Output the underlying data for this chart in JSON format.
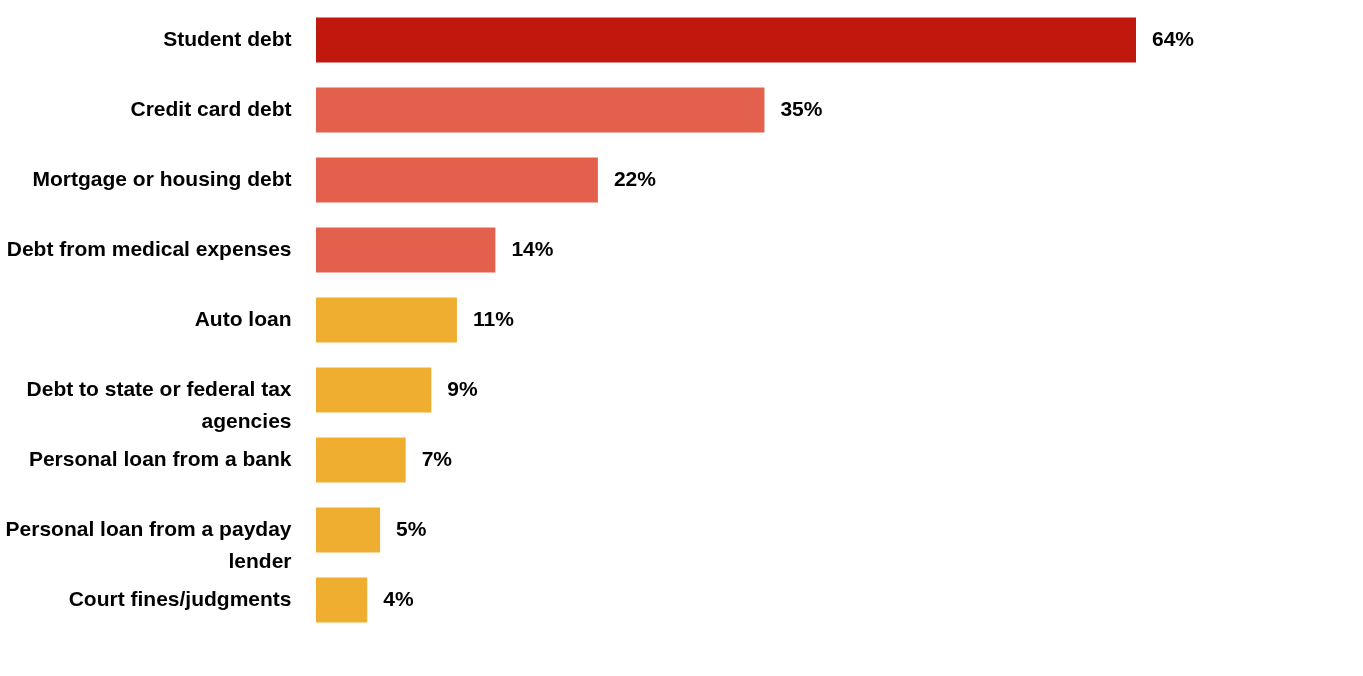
{
  "chart_data": {
    "type": "bar",
    "orientation": "horizontal",
    "categories": [
      "Student debt",
      "Credit card debt",
      "Mortgage or housing debt",
      "Debt from medical expenses",
      "Auto loan",
      "Debt to state or federal tax agencies",
      "Personal loan from a bank",
      "Personal loan from a payday lender",
      "Court fines/judgments"
    ],
    "values": [
      64,
      35,
      22,
      14,
      11,
      9,
      7,
      5,
      4
    ],
    "colors": [
      "#c0180c",
      "#e3604c",
      "#e3604c",
      "#e3604c",
      "#f0ae30",
      "#f0ae30",
      "#f0ae30",
      "#f0ae30",
      "#f0ae30"
    ],
    "value_labels": [
      "64%",
      "35%",
      "22%",
      "14%",
      "11%",
      "9%",
      "7%",
      "5%",
      "4%"
    ]
  }
}
